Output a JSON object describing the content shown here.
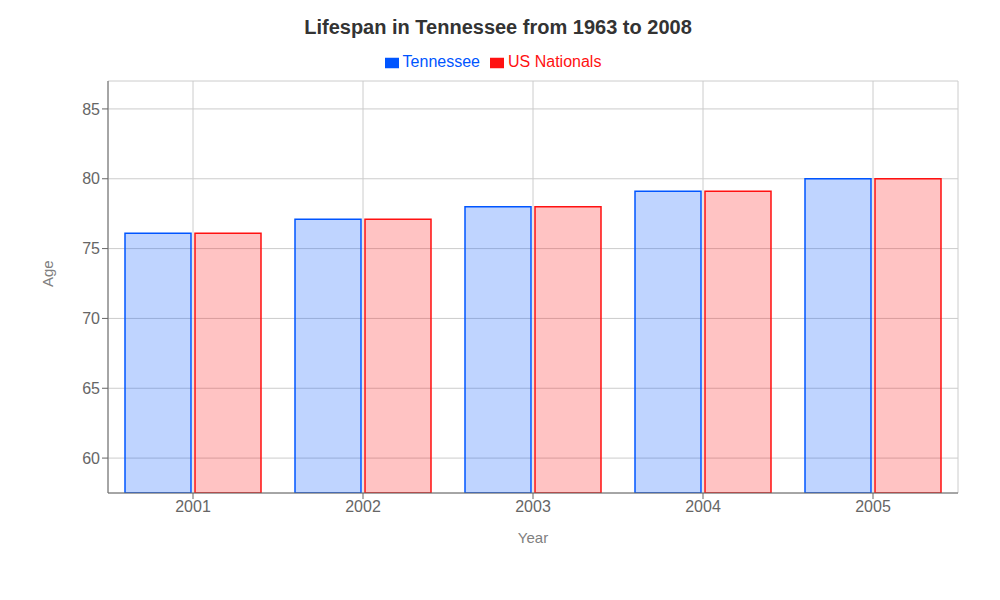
{
  "chart_data": {
    "type": "bar",
    "title": "Lifespan in Tennessee from 1963 to 2008",
    "x_label": "Year",
    "y_label": "Age",
    "categories": [
      "2001",
      "2002",
      "2003",
      "2004",
      "2005"
    ],
    "series": [
      {
        "name": "Tennessee",
        "color": "#0055ff",
        "values": [
          76.1,
          77.1,
          78.0,
          79.1,
          80.0
        ]
      },
      {
        "name": "US Nationals",
        "color": "#ff1111",
        "values": [
          76.1,
          77.1,
          78.0,
          79.1,
          80.0
        ]
      }
    ],
    "ylim": [
      57.5,
      87
    ],
    "yticks": [
      60,
      65,
      70,
      75,
      80,
      85
    ],
    "grid": true,
    "legend": "top"
  }
}
